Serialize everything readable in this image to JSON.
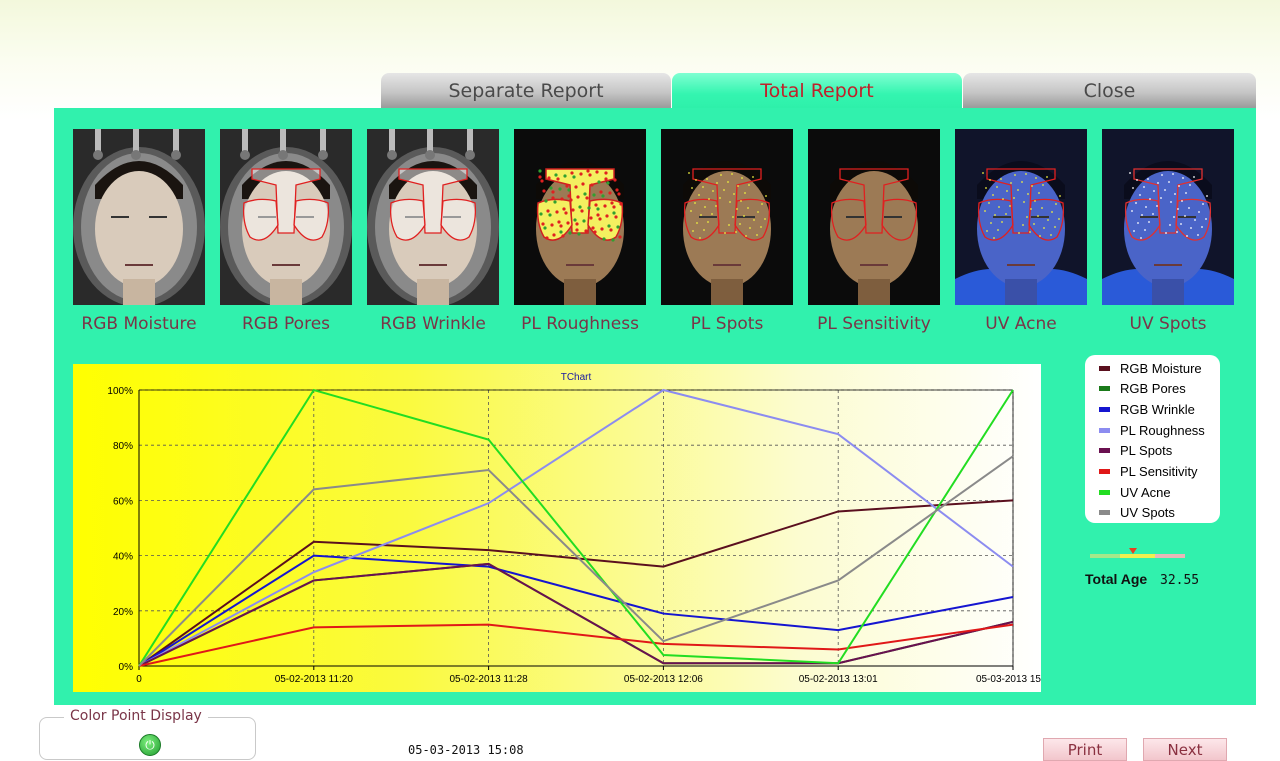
{
  "tabs": [
    {
      "label": "Separate Report",
      "active": false
    },
    {
      "label": "Total Report",
      "active": true
    },
    {
      "label": "Close",
      "active": false
    }
  ],
  "thumbnails": [
    {
      "label": "RGB Moisture",
      "mode": "rgb",
      "overlay": "none"
    },
    {
      "label": "RGB Pores",
      "mode": "rgb",
      "overlay": "outline"
    },
    {
      "label": "RGB Wrinkle",
      "mode": "rgb",
      "overlay": "outline"
    },
    {
      "label": "PL Roughness",
      "mode": "pl",
      "overlay": "filled"
    },
    {
      "label": "PL Spots",
      "mode": "pl",
      "overlay": "outline-dots"
    },
    {
      "label": "PL Sensitivity",
      "mode": "pl",
      "overlay": "outline"
    },
    {
      "label": "UV Acne",
      "mode": "uv",
      "overlay": "outline-dots"
    },
    {
      "label": "UV Spots",
      "mode": "uv",
      "overlay": "outline-white"
    }
  ],
  "chart_data": {
    "type": "line",
    "title": "TChart",
    "x": [
      "0",
      "05-02-2013 11:20",
      "05-02-2013 11:28",
      "05-02-2013 12:06",
      "05-02-2013 13:01",
      "05-03-2013 15"
    ],
    "ylim": [
      0,
      100
    ],
    "yticks": [
      "0%",
      "20%",
      "40%",
      "60%",
      "80%",
      "100%"
    ],
    "grid": true,
    "series": [
      {
        "name": "RGB Moisture",
        "color": "#5a0f1e",
        "values": [
          0,
          45,
          42,
          36,
          56,
          60
        ]
      },
      {
        "name": "RGB Pores",
        "color": "#1a7a1a",
        "values": [
          0,
          31,
          37,
          1,
          1,
          16
        ]
      },
      {
        "name": "RGB Wrinkle",
        "color": "#1515d0",
        "values": [
          0,
          40,
          36,
          19,
          13,
          25
        ]
      },
      {
        "name": "PL Roughness",
        "color": "#8c8cf0",
        "values": [
          0,
          34,
          59,
          100,
          84,
          36
        ]
      },
      {
        "name": "PL Spots",
        "color": "#6a1050",
        "values": [
          0,
          31,
          37,
          1,
          1,
          16
        ]
      },
      {
        "name": "PL Sensitivity",
        "color": "#e01818",
        "values": [
          0,
          14,
          15,
          8,
          6,
          15
        ]
      },
      {
        "name": "UV Acne",
        "color": "#22dd22",
        "values": [
          0,
          100,
          82,
          4,
          1,
          100
        ]
      },
      {
        "name": "UV Spots",
        "color": "#8a8a8a",
        "values": [
          0,
          64,
          71,
          9,
          31,
          76
        ]
      }
    ]
  },
  "age": {
    "label": "Total Age",
    "value": "32.55",
    "marker_fraction": 0.45
  },
  "color_point": {
    "title": "Color Point Display",
    "icon": "power-icon",
    "state": "on"
  },
  "timestamp": "05-03-2013 15:08",
  "buttons": {
    "print": "Print",
    "next": "Next"
  }
}
